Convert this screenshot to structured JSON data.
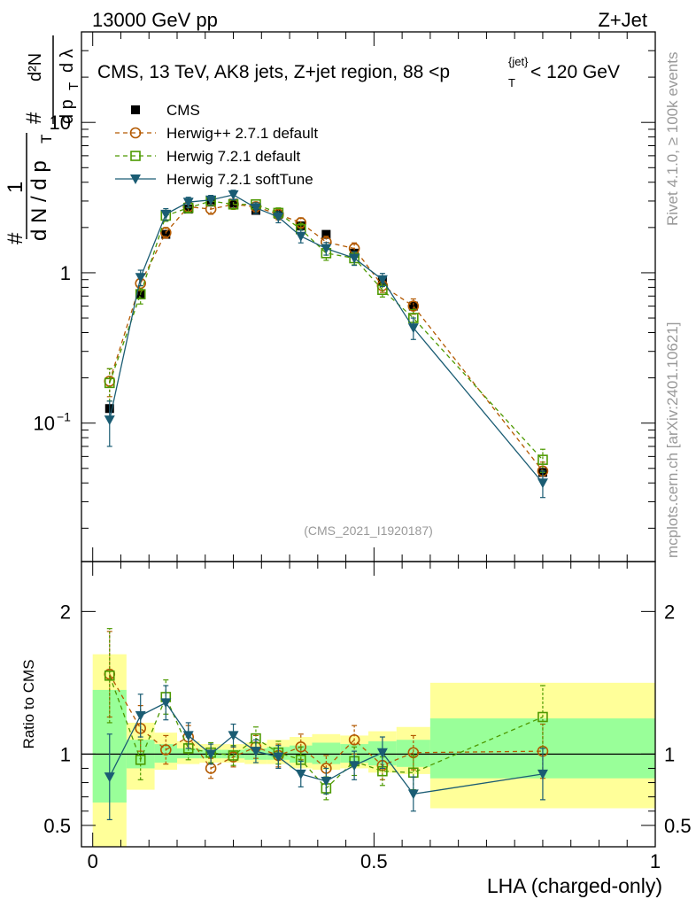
{
  "header": {
    "energy_label": "13000 GeV pp",
    "process_label": "Z+Jet",
    "title_main": "CMS, 13 TeV, AK8 jets, Z+jet region, 88 <p",
    "title_sup": "{jet}",
    "title_sub": "T",
    "title_end": "< 120 GeV",
    "side_rivet": "Rivet 4.1.0, ≥ 100k events",
    "side_mcplots": "mcplots.cern.ch [arXiv:2401.10621]",
    "watermark": "(CMS_2021_I1920187)"
  },
  "ylabel_parts": {
    "hash": "#",
    "one": "1",
    "dn": "d N / d p",
    "t": "T",
    "num_d2n": "d²N",
    "den_dpt": "d p",
    "den_dl": "d λ"
  },
  "ratio_ylabel": "Ratio to CMS",
  "xlabel": "LHA (charged-only)",
  "colors": {
    "cms": "#000000",
    "herwigpp": "#b35900",
    "herwig721": "#4d9900",
    "softtune": "#1a5c73",
    "band_yellow": "#ffff99",
    "band_green": "#99ff99"
  },
  "chart_data": [
    {
      "type": "scatter",
      "title": "CMS, 13 TeV, AK8 jets, Z+jet region, 88 < pT{jet} < 120 GeV",
      "xlabel": "LHA (charged-only)",
      "ylabel": "1/(dN/dpT) d²N/(dpT dλ)",
      "yscale": "log",
      "xlim": [
        -0.02,
        1.0
      ],
      "ylim": [
        0.012,
        40
      ],
      "yticks": [
        {
          "v": 0.1,
          "base": "10",
          "exp": "−1"
        },
        {
          "v": 1,
          "base": "1",
          "exp": ""
        },
        {
          "v": 10,
          "base": "10",
          "exp": ""
        }
      ],
      "legend_position": "top-left",
      "series": [
        {
          "name": "CMS",
          "key": "cms",
          "marker": "square",
          "x": [
            0.03,
            0.085,
            0.13,
            0.17,
            0.21,
            0.25,
            0.29,
            0.33,
            0.37,
            0.415,
            0.465,
            0.515,
            0.57,
            0.8
          ],
          "y": [
            0.125,
            0.72,
            1.8,
            2.65,
            2.95,
            2.9,
            2.6,
            2.45,
            2.05,
            1.8,
            1.35,
            0.88,
            0.6,
            0.047
          ]
        },
        {
          "name": "Herwig++ 2.7.1 default",
          "key": "herwigpp",
          "marker": "circle",
          "dashed": true,
          "x": [
            0.03,
            0.085,
            0.13,
            0.17,
            0.21,
            0.25,
            0.29,
            0.33,
            0.37,
            0.415,
            0.465,
            0.515,
            0.57,
            0.8
          ],
          "y": [
            0.19,
            0.85,
            1.85,
            2.75,
            2.65,
            2.85,
            2.75,
            2.45,
            2.15,
            1.6,
            1.45,
            0.82,
            0.6,
            0.048
          ],
          "err": [
            0.04,
            0.09,
            0.15,
            0.2,
            0.2,
            0.2,
            0.2,
            0.2,
            0.17,
            0.15,
            0.13,
            0.08,
            0.07,
            0.007
          ]
        },
        {
          "name": "Herwig 7.2.1 default",
          "key": "herwig721",
          "marker": "square-open",
          "dashed": true,
          "x": [
            0.03,
            0.085,
            0.13,
            0.17,
            0.21,
            0.25,
            0.29,
            0.33,
            0.37,
            0.415,
            0.465,
            0.515,
            0.57,
            0.8
          ],
          "y": [
            0.185,
            0.72,
            2.4,
            2.7,
            3.0,
            2.85,
            2.85,
            2.5,
            1.95,
            1.35,
            1.25,
            0.77,
            0.5,
            0.057
          ],
          "err": [
            0.045,
            0.1,
            0.2,
            0.2,
            0.2,
            0.2,
            0.2,
            0.2,
            0.18,
            0.14,
            0.12,
            0.08,
            0.07,
            0.01
          ]
        },
        {
          "name": "Herwig 7.2.1 softTune",
          "key": "softtune",
          "marker": "triangle-down",
          "x": [
            0.03,
            0.085,
            0.13,
            0.17,
            0.21,
            0.25,
            0.29,
            0.33,
            0.37,
            0.415,
            0.465,
            0.515,
            0.57,
            0.8
          ],
          "y": [
            0.105,
            0.93,
            2.45,
            2.95,
            3.05,
            3.3,
            2.7,
            2.35,
            1.75,
            1.45,
            1.25,
            0.9,
            0.43,
            0.04
          ],
          "err": [
            0.035,
            0.11,
            0.22,
            0.23,
            0.22,
            0.24,
            0.22,
            0.2,
            0.17,
            0.14,
            0.13,
            0.09,
            0.07,
            0.008
          ]
        }
      ]
    },
    {
      "type": "scatter",
      "title": "Ratio to CMS",
      "xlabel": "LHA (charged-only)",
      "ylabel": "Ratio to CMS",
      "xlim": [
        -0.02,
        1.0
      ],
      "ylim": [
        0.35,
        2.35
      ],
      "yticks": [
        0.5,
        1,
        2
      ],
      "xticks": [
        0,
        0.5,
        1
      ],
      "bands": {
        "edges": [
          0,
          0.06,
          0.11,
          0.15,
          0.19,
          0.23,
          0.27,
          0.31,
          0.35,
          0.39,
          0.44,
          0.49,
          0.54,
          0.6,
          1.0
        ],
        "yellow_lo": [
          0.35,
          0.75,
          0.89,
          0.93,
          0.94,
          0.94,
          0.93,
          0.93,
          0.9,
          0.89,
          0.9,
          0.87,
          0.86,
          0.62
        ],
        "yellow_hi": [
          1.7,
          1.22,
          1.15,
          1.09,
          1.07,
          1.07,
          1.08,
          1.1,
          1.12,
          1.14,
          1.13,
          1.16,
          1.19,
          1.5
        ],
        "green_lo": [
          0.66,
          0.9,
          0.94,
          0.97,
          0.97,
          0.97,
          0.96,
          0.96,
          0.94,
          0.93,
          0.94,
          0.92,
          0.91,
          0.83
        ],
        "green_hi": [
          1.45,
          1.1,
          1.07,
          1.04,
          1.03,
          1.03,
          1.04,
          1.05,
          1.06,
          1.08,
          1.07,
          1.09,
          1.1,
          1.25
        ]
      },
      "series": [
        {
          "name": "Herwig++ 2.7.1 default",
          "key": "herwigpp",
          "marker": "circle",
          "dashed": true,
          "x": [
            0.03,
            0.085,
            0.13,
            0.17,
            0.21,
            0.25,
            0.29,
            0.33,
            0.37,
            0.415,
            0.465,
            0.515,
            0.57,
            0.8
          ],
          "y": [
            1.56,
            1.18,
            1.03,
            1.12,
            0.9,
            0.98,
            1.05,
            0.99,
            1.05,
            0.9,
            1.1,
            0.92,
            1.01,
            1.02
          ],
          "err": [
            0.3,
            0.16,
            0.1,
            0.08,
            0.07,
            0.07,
            0.08,
            0.08,
            0.09,
            0.09,
            0.1,
            0.1,
            0.12,
            0.19
          ]
        },
        {
          "name": "Herwig 7.2.1 default",
          "key": "herwig721",
          "marker": "square-open",
          "dashed": true,
          "x": [
            0.03,
            0.085,
            0.13,
            0.17,
            0.21,
            0.25,
            0.29,
            0.33,
            0.37,
            0.415,
            0.465,
            0.515,
            0.57,
            0.8
          ],
          "y": [
            1.55,
            0.96,
            1.4,
            1.04,
            1.01,
            0.99,
            1.11,
            1.01,
            0.96,
            0.76,
            0.95,
            0.88,
            0.87,
            1.26
          ],
          "err": [
            0.33,
            0.14,
            0.12,
            0.08,
            0.07,
            0.07,
            0.08,
            0.08,
            0.09,
            0.08,
            0.1,
            0.1,
            0.12,
            0.22
          ]
        },
        {
          "name": "Herwig 7.2.1 softTune",
          "key": "softtune",
          "marker": "triangle-down",
          "x": [
            0.03,
            0.085,
            0.13,
            0.17,
            0.21,
            0.25,
            0.29,
            0.33,
            0.37,
            0.415,
            0.465,
            0.515,
            0.57,
            0.8
          ],
          "y": [
            0.84,
            1.27,
            1.36,
            1.13,
            1.0,
            1.13,
            1.02,
            0.98,
            0.86,
            0.81,
            0.92,
            1.01,
            0.72,
            0.86
          ],
          "err": [
            0.3,
            0.15,
            0.12,
            0.09,
            0.07,
            0.08,
            0.08,
            0.08,
            0.09,
            0.09,
            0.1,
            0.11,
            0.12,
            0.18
          ]
        }
      ]
    }
  ]
}
